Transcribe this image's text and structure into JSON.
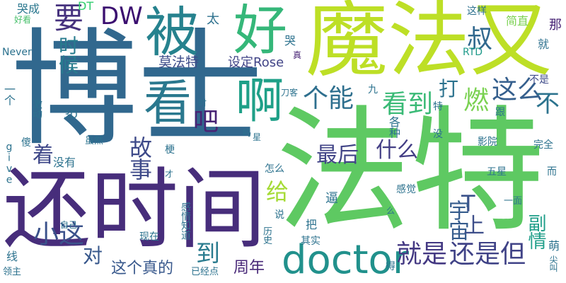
{
  "words": [
    {
      "text": "博士",
      "color": "#31688e",
      "o": "h"
    },
    {
      "text": "法特",
      "color": "#5ec962",
      "o": "h"
    },
    {
      "text": "魔法又",
      "color": "#bddf26",
      "o": "h"
    },
    {
      "text": "还时间",
      "color": "#472d7b",
      "o": "h"
    },
    {
      "text": "好",
      "color": "#35b779",
      "o": "h"
    },
    {
      "text": "被",
      "color": "#26828e",
      "o": "h"
    },
    {
      "text": "看",
      "color": "#2a788e",
      "o": "h"
    },
    {
      "text": "啊",
      "color": "#1fa088",
      "o": "h"
    },
    {
      "text": "doctor",
      "color": "#21918c",
      "o": "h"
    },
    {
      "text": "DW",
      "color": "#3b0f70",
      "o": "h"
    },
    {
      "text": "要",
      "color": "#46327e",
      "o": "h"
    },
    {
      "text": "时候",
      "color": "#287c8e",
      "o": "v"
    },
    {
      "text": "叔",
      "color": "#31688e",
      "o": "h"
    },
    {
      "text": "这么",
      "color": "#355f8d",
      "o": "h"
    },
    {
      "text": "个能",
      "color": "#2e6f8e",
      "o": "h"
    },
    {
      "text": "看到",
      "color": "#3aba76",
      "o": "h"
    },
    {
      "text": "燃",
      "color": "#7ad151",
      "o": "h"
    },
    {
      "text": "不",
      "color": "#2c738e",
      "o": "h"
    },
    {
      "text": "吧",
      "color": "#482475",
      "o": "h"
    },
    {
      "text": "故事",
      "color": "#3e4a89",
      "o": "v"
    },
    {
      "text": "着",
      "color": "#3f4889",
      "o": "h"
    },
    {
      "text": "最后",
      "color": "#414487",
      "o": "h"
    },
    {
      "text": "什么",
      "color": "#433e85",
      "o": "h"
    },
    {
      "text": "打",
      "color": "#2c728e",
      "o": "h"
    },
    {
      "text": "给",
      "color": "#a5db36",
      "o": "h"
    },
    {
      "text": "T",
      "color": "#3b528b",
      "o": "h"
    },
    {
      "text": "宇宙",
      "color": "#365c8d",
      "o": "v"
    },
    {
      "text": "上",
      "color": "#3d4e8a",
      "o": "h"
    },
    {
      "text": "小这",
      "color": "#3b528b",
      "o": "h"
    },
    {
      "text": "对",
      "color": "#38588c",
      "o": "h"
    },
    {
      "text": "到",
      "color": "#297b8e",
      "o": "h"
    },
    {
      "text": "就是",
      "color": "#443983",
      "o": "h"
    },
    {
      "text": "还是但",
      "color": "#404387",
      "o": "h"
    },
    {
      "text": "这个真的",
      "color": "#38588c",
      "o": "h"
    },
    {
      "text": "周年",
      "color": "#482878",
      "o": "h"
    },
    {
      "text": "副情",
      "color": "#1f9e89",
      "o": "v"
    },
    {
      "text": "莫法特",
      "color": "#3e4c8a",
      "o": "h"
    },
    {
      "text": "设定Rose",
      "color": "#414487",
      "o": "h"
    },
    {
      "text": "太",
      "color": "#2d718e",
      "o": "h"
    },
    {
      "text": "哭成",
      "color": "#2a778e",
      "o": "h"
    },
    {
      "text": "好看",
      "color": "#4ac16d",
      "o": "h"
    },
    {
      "text": "DT",
      "color": "#30cd6e",
      "o": "h"
    },
    {
      "text": "这样",
      "color": "#2d718e",
      "o": "h"
    },
    {
      "text": "简直",
      "color": "#7ad151",
      "o": "h"
    },
    {
      "text": "那",
      "color": "#482576",
      "o": "h"
    },
    {
      "text": "就",
      "color": "#2d718e",
      "o": "h"
    },
    {
      "text": "Never",
      "color": "#2c728e",
      "o": "h"
    },
    {
      "text": "哭",
      "color": "#2c728e",
      "o": "h"
    },
    {
      "text": "真",
      "color": "#482475",
      "o": "h"
    },
    {
      "text": "RTD",
      "color": "#1f9a8a",
      "o": "h"
    },
    {
      "text": "不是",
      "color": "#3e4a89",
      "o": "h"
    },
    {
      "text": "一个",
      "color": "#2c728e",
      "o": "v"
    },
    {
      "text": "激动",
      "color": "#2c728e",
      "o": "v"
    },
    {
      "text": "3D",
      "color": "#2d718e",
      "o": "h"
    },
    {
      "text": "时",
      "color": "#2c728e",
      "o": "h"
    },
    {
      "text": "吗",
      "color": "#2c728e",
      "o": "h"
    },
    {
      "text": "星",
      "color": "#2c728e",
      "o": "h"
    },
    {
      "text": "刀客",
      "color": "#2c728e",
      "o": "h"
    },
    {
      "text": "九",
      "color": "#2c728e",
      "o": "h"
    },
    {
      "text": "特",
      "color": "#2c728e",
      "o": "h"
    },
    {
      "text": "跟",
      "color": "#2c728e",
      "o": "h"
    },
    {
      "text": "各种",
      "color": "#2c728e",
      "o": "v"
    },
    {
      "text": "没",
      "color": "#2c728e",
      "o": "h"
    },
    {
      "text": "影院",
      "color": "#2c728e",
      "o": "h"
    },
    {
      "text": "完全",
      "color": "#2c728e",
      "o": "h"
    },
    {
      "text": "give",
      "color": "#2c728e",
      "o": "v"
    },
    {
      "text": "傻",
      "color": "#2c728e",
      "o": "h"
    },
    {
      "text": "虽然",
      "color": "#2c728e",
      "o": "h"
    },
    {
      "text": "没有",
      "color": "#2c728e",
      "o": "h"
    },
    {
      "text": "梗",
      "color": "#2c728e",
      "o": "h"
    },
    {
      "text": "怎么",
      "color": "#2c728e",
      "o": "h"
    },
    {
      "text": "才",
      "color": "#2c728e",
      "o": "h"
    },
    {
      "text": "五星",
      "color": "#2c728e",
      "o": "h"
    },
    {
      "text": "而",
      "color": "#2c728e",
      "o": "h"
    },
    {
      "text": "感觉",
      "color": "#2c728e",
      "o": "h"
    },
    {
      "text": "一面",
      "color": "#2c728e",
      "o": "h"
    },
    {
      "text": "逼",
      "color": "#2c728e",
      "o": "h"
    },
    {
      "text": "么",
      "color": "#2c728e",
      "o": "h"
    },
    {
      "text": "说",
      "color": "#2c728e",
      "o": "h"
    },
    {
      "text": "把",
      "color": "#2c728e",
      "o": "h"
    },
    {
      "text": "自己",
      "color": "#2c728e",
      "o": "h"
    },
    {
      "text": "感情知道",
      "color": "#2c728e",
      "o": "v"
    },
    {
      "text": "现在",
      "color": "#2c728e",
      "o": "h"
    },
    {
      "text": "历史",
      "color": "#2c728e",
      "o": "v"
    },
    {
      "text": "其实",
      "color": "#2c728e",
      "o": "h"
    },
    {
      "text": "线",
      "color": "#2c728e",
      "o": "h"
    },
    {
      "text": "领主",
      "color": "#2c728e",
      "o": "h"
    },
    {
      "text": "已经点",
      "color": "#2c728e",
      "o": "h"
    },
    {
      "text": "得",
      "color": "#2c728e",
      "o": "h"
    },
    {
      "text": "萌",
      "color": "#2c728e",
      "o": "h"
    },
    {
      "text": "尖叫",
      "color": "#2c728e",
      "o": "v"
    }
  ]
}
